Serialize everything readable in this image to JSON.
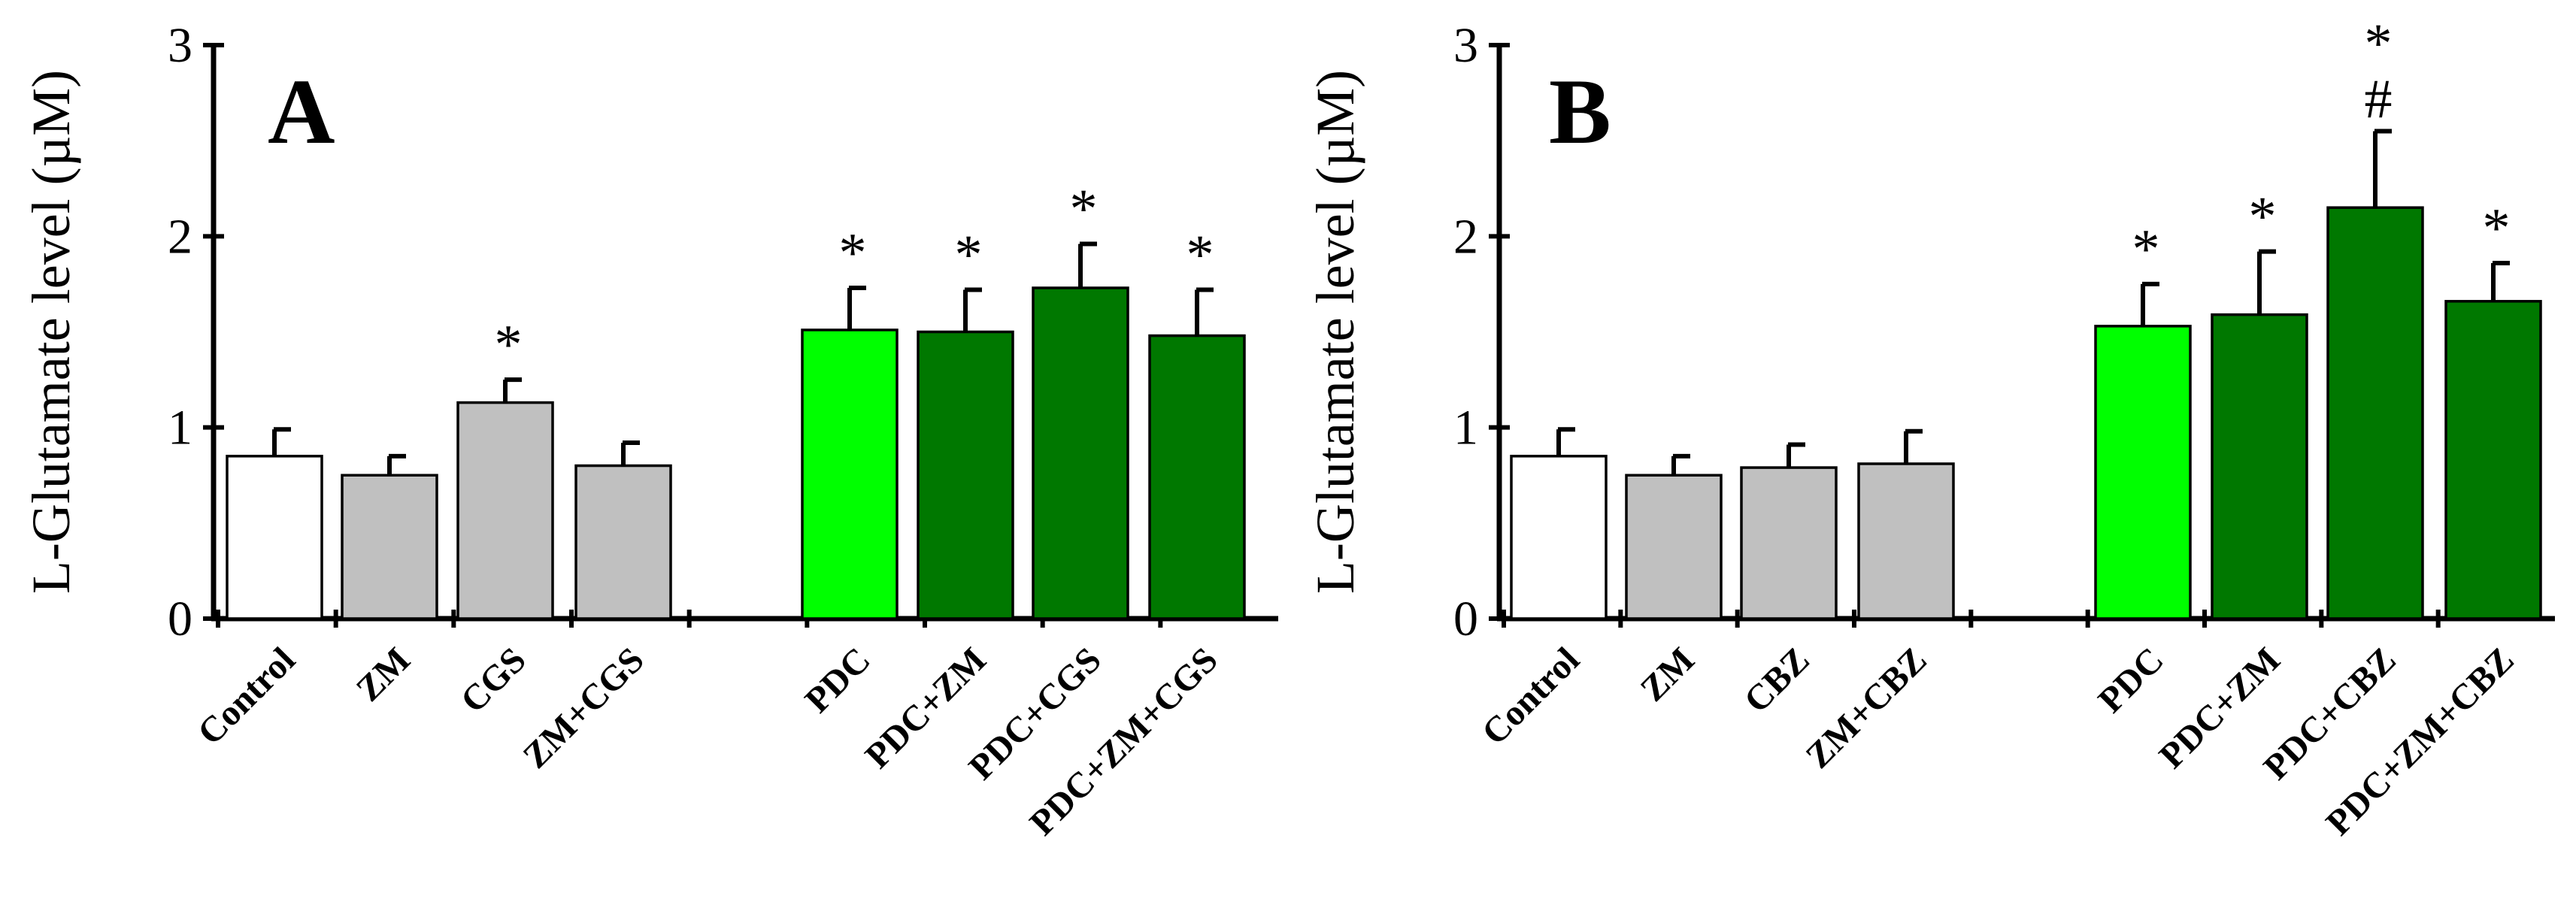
{
  "colors": {
    "Control": "#ffffff",
    "antagonist_agonist": "#c0c0c0",
    "PDC": "#00ff00",
    "PDC_combo": "#007800",
    "axis": "#000000"
  },
  "chart_data": [
    {
      "type": "bar",
      "panel": "A",
      "ylabel": "L-Glutamate level (µM)",
      "ylim": [
        0,
        3
      ],
      "yticks": [
        "0",
        "1",
        "2",
        "3"
      ],
      "categories": [
        "Control",
        "ZM",
        "CGS",
        "ZM+CGS",
        "PDC",
        "PDC+ZM",
        "PDC+CGS",
        "PDC+ZM+CGS"
      ],
      "values": [
        0.85,
        0.75,
        1.13,
        0.8,
        1.51,
        1.5,
        1.73,
        1.48
      ],
      "errors": [
        0.14,
        0.1,
        0.12,
        0.12,
        0.22,
        0.22,
        0.23,
        0.24
      ],
      "color_keys": [
        "Control",
        "antagonist_agonist",
        "antagonist_agonist",
        "antagonist_agonist",
        "PDC",
        "PDC_combo",
        "PDC_combo",
        "PDC_combo"
      ],
      "annotations": [
        "",
        "",
        "*",
        "",
        "*",
        "*",
        "*",
        "*"
      ],
      "annotations2": [
        "",
        "",
        "",
        "",
        "",
        "",
        "",
        ""
      ]
    },
    {
      "type": "bar",
      "panel": "B",
      "ylabel": "L-Glutamate level (µM)",
      "ylim": [
        0,
        3
      ],
      "yticks": [
        "0",
        "1",
        "2",
        "3"
      ],
      "categories": [
        "Control",
        "ZM",
        "CBZ",
        "ZM+CBZ",
        "PDC",
        "PDC+ZM",
        "PDC+CBZ",
        "PDC+ZM+CBZ"
      ],
      "values": [
        0.85,
        0.75,
        0.79,
        0.81,
        1.53,
        1.59,
        2.15,
        1.66
      ],
      "errors": [
        0.14,
        0.1,
        0.12,
        0.17,
        0.22,
        0.33,
        0.4,
        0.2
      ],
      "color_keys": [
        "Control",
        "antagonist_agonist",
        "antagonist_agonist",
        "antagonist_agonist",
        "PDC",
        "PDC_combo",
        "PDC_combo",
        "PDC_combo"
      ],
      "annotations": [
        "",
        "",
        "",
        "",
        "*",
        "*",
        "*",
        "*"
      ],
      "annotations2": [
        "",
        "",
        "",
        "",
        "",
        "",
        "#",
        ""
      ]
    }
  ]
}
